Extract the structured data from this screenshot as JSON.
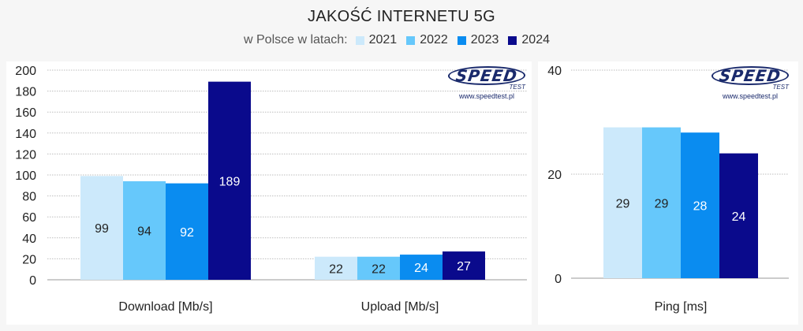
{
  "title": "JAKOŚĆ INTERNETU 5G",
  "legend": {
    "lead": "w Polsce w latach:",
    "items": [
      {
        "label": "2021",
        "color": "#cce9fb"
      },
      {
        "label": "2022",
        "color": "#66c8fb"
      },
      {
        "label": "2023",
        "color": "#0a8cf0"
      },
      {
        "label": "2024",
        "color": "#0a0a8c"
      }
    ]
  },
  "logo": {
    "name": "SPEED",
    "sub": "TEST",
    "url": "www.speedtest.pl"
  },
  "chart_data": [
    {
      "type": "bar",
      "categories": [
        "Download [Mb/s]",
        "Upload [Mb/s]"
      ],
      "series": [
        {
          "name": "2021",
          "values": [
            99,
            22
          ]
        },
        {
          "name": "2022",
          "values": [
            94,
            22
          ]
        },
        {
          "name": "2023",
          "values": [
            92,
            24
          ]
        },
        {
          "name": "2024",
          "values": [
            189,
            27
          ]
        }
      ],
      "ylim": [
        0,
        200
      ],
      "yticks": [
        "200",
        "180",
        "160",
        "140",
        "120",
        "100",
        "80",
        "60",
        "40",
        "20",
        "0"
      ],
      "grid": true
    },
    {
      "type": "bar",
      "categories": [
        "Ping [ms]"
      ],
      "series": [
        {
          "name": "2021",
          "values": [
            29
          ]
        },
        {
          "name": "2022",
          "values": [
            29
          ]
        },
        {
          "name": "2023",
          "values": [
            28
          ]
        },
        {
          "name": "2024",
          "values": [
            24
          ]
        }
      ],
      "ylim": [
        0,
        40
      ],
      "yticks": [
        "40",
        "20",
        "0"
      ],
      "grid": true
    }
  ]
}
